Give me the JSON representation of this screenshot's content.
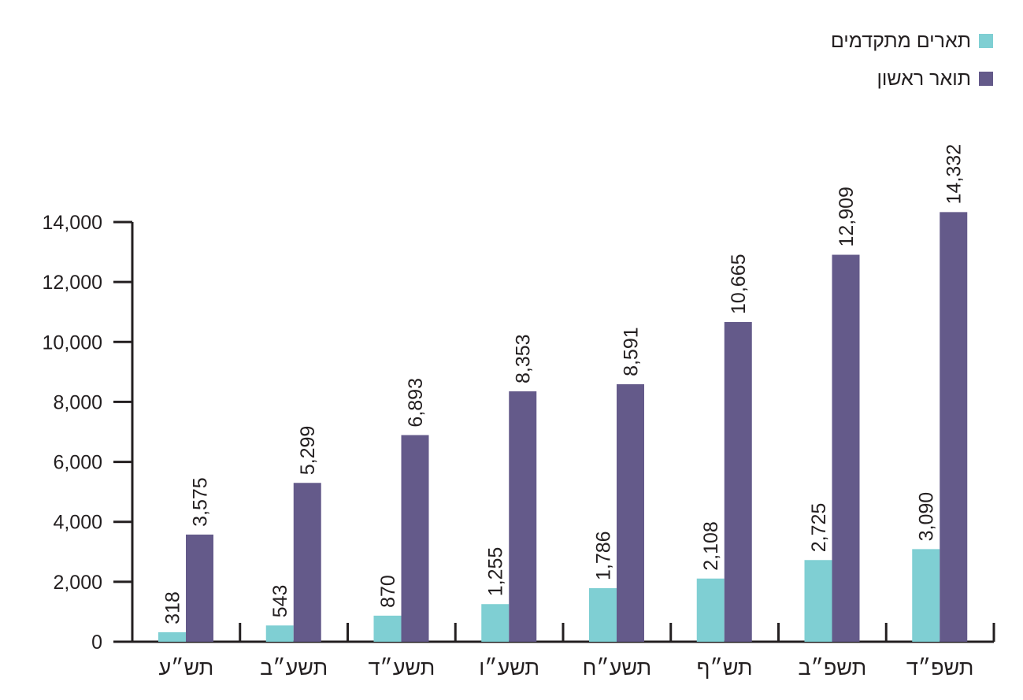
{
  "chart_data": {
    "type": "bar",
    "title": "",
    "xlabel": "",
    "ylabel": "",
    "ylim": [
      0,
      14000
    ],
    "yticks": [
      0,
      2000,
      4000,
      6000,
      8000,
      10000,
      12000,
      14000
    ],
    "ytick_labels": [
      "0",
      "2,000",
      "4,000",
      "6,000",
      "8,000",
      "10,000",
      "12,000",
      "14,000"
    ],
    "categories": [
      "תש״ע",
      "תשע״ב",
      "תשע״ד",
      "תשע״ו",
      "תשע״ח",
      "תש״ף",
      "תשפ״ב",
      "תשפ״ד"
    ],
    "series": [
      {
        "name": "תארים מתקדמים",
        "color": "#7fcfd3",
        "values": [
          318,
          543,
          870,
          1255,
          1786,
          2108,
          2725,
          3090
        ],
        "labels": [
          "318",
          "543",
          "870",
          "1,255",
          "1,786",
          "2,108",
          "2,725",
          "3,090"
        ]
      },
      {
        "name": "תואר ראשון",
        "color": "#645a8a",
        "values": [
          3575,
          5299,
          6893,
          8353,
          8591,
          10665,
          12909,
          14332
        ],
        "labels": [
          "3,575",
          "5,299",
          "6,893",
          "8,353",
          "8,591",
          "10,665",
          "12,909",
          "14,332"
        ]
      }
    ],
    "grid": false,
    "legend_position": "top-right"
  }
}
